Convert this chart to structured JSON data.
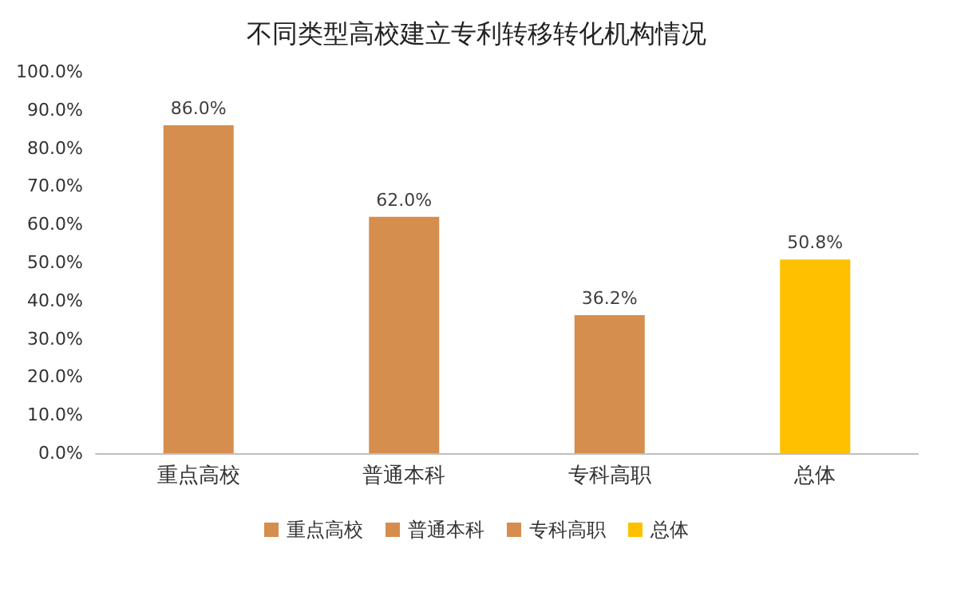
{
  "chart_data": {
    "type": "bar",
    "title": "不同类型高校建立专利转移转化机构情况",
    "categories": [
      "重点高校",
      "普通本科",
      "专科高职",
      "总体"
    ],
    "series": [
      {
        "name": "重点高校",
        "color": "#d58e4e",
        "values": [
          86.0,
          null,
          null,
          null
        ],
        "value_labels": [
          "86.0%",
          null,
          null,
          null
        ]
      },
      {
        "name": "普通本科",
        "color": "#d58e4e",
        "values": [
          null,
          62.0,
          null,
          null
        ],
        "value_labels": [
          null,
          "62.0%",
          null,
          null
        ]
      },
      {
        "name": "专科高职",
        "color": "#d58e4e",
        "values": [
          null,
          null,
          36.2,
          null
        ],
        "value_labels": [
          null,
          null,
          "36.2%",
          null
        ]
      },
      {
        "name": "总体",
        "color": "#ffc000",
        "values": [
          null,
          null,
          null,
          50.8
        ],
        "value_labels": [
          null,
          null,
          null,
          "50.8%"
        ]
      }
    ],
    "ylim": [
      0,
      100
    ],
    "yticks": [
      {
        "value": 0,
        "label": "0.0%"
      },
      {
        "value": 10,
        "label": "10.0%"
      },
      {
        "value": 20,
        "label": "20.0%"
      },
      {
        "value": 30,
        "label": "30.0%"
      },
      {
        "value": 40,
        "label": "40.0%"
      },
      {
        "value": 50,
        "label": "50.0%"
      },
      {
        "value": 60,
        "label": "60.0%"
      },
      {
        "value": 70,
        "label": "70.0%"
      },
      {
        "value": 80,
        "label": "80.0%"
      },
      {
        "value": 90,
        "label": "90.0%"
      },
      {
        "value": 100,
        "label": "100.0%"
      }
    ],
    "grid": false,
    "legend": "bottom"
  }
}
